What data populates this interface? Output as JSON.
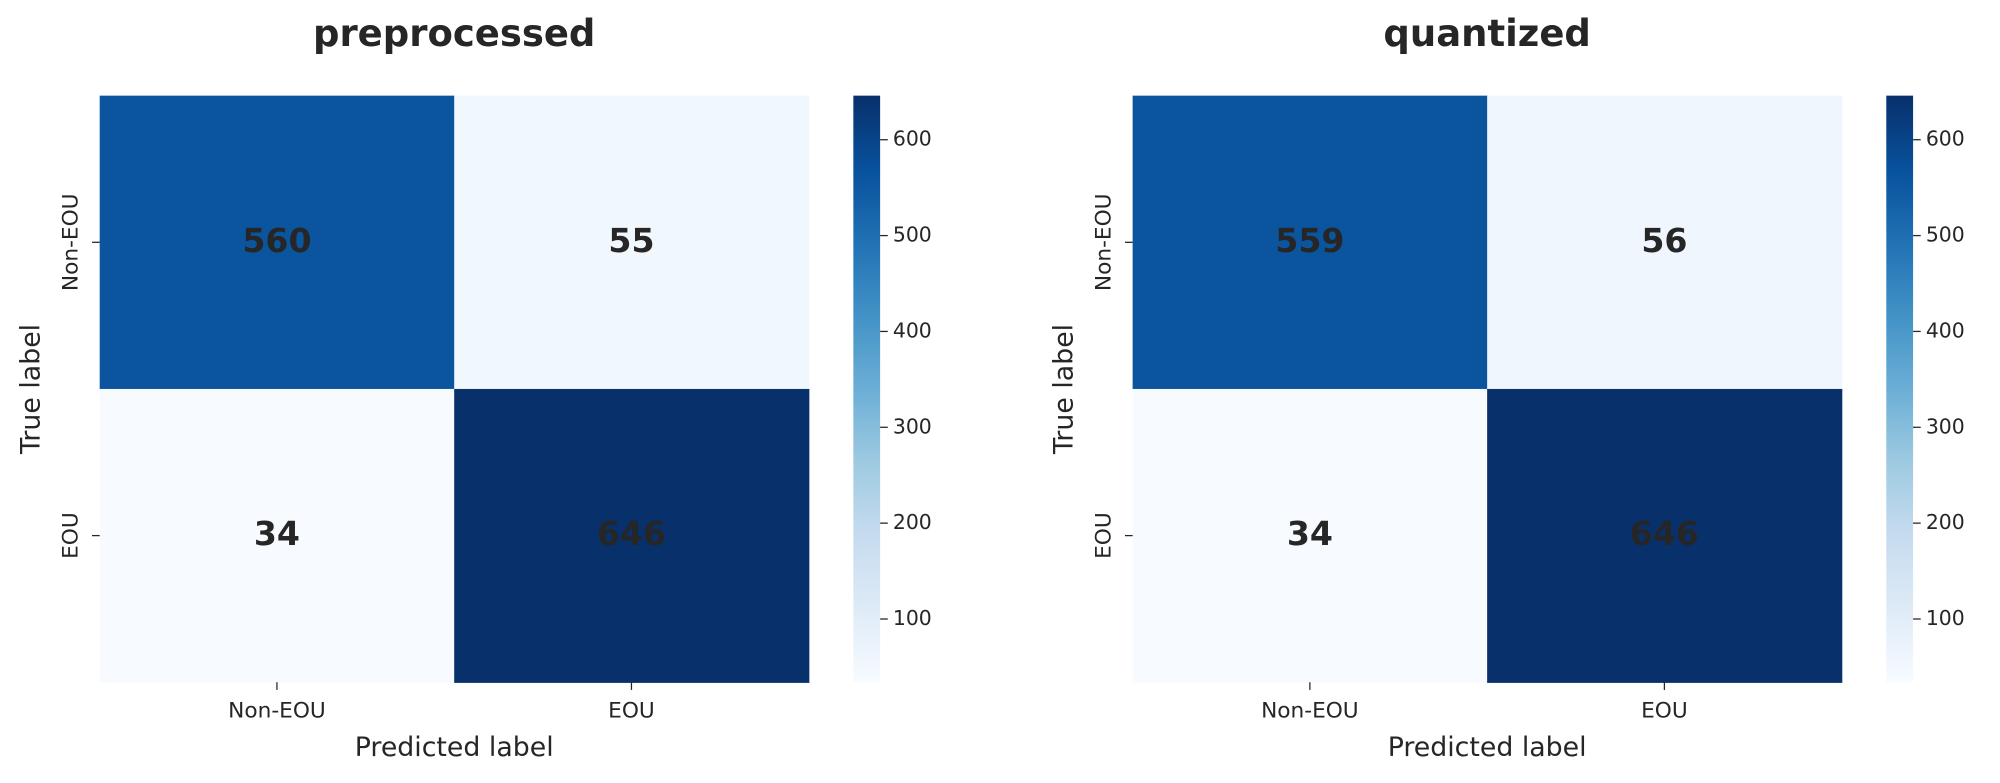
{
  "chart_data": [
    {
      "type": "heatmap",
      "title": "preprocessed",
      "x_label": "Predicted label",
      "y_label": "True label",
      "x_categories": [
        "Non-EOU",
        "EOU"
      ],
      "y_categories": [
        "Non-EOU",
        "EOU"
      ],
      "values": [
        [
          560,
          55
        ],
        [
          34,
          646
        ]
      ],
      "colormap": "Blues",
      "clim": [
        34,
        646
      ],
      "colorbar_ticks": [
        100,
        200,
        300,
        400,
        500,
        600
      ]
    },
    {
      "type": "heatmap",
      "title": "quantized",
      "x_label": "Predicted label",
      "y_label": "True label",
      "x_categories": [
        "Non-EOU",
        "EOU"
      ],
      "y_categories": [
        "Non-EOU",
        "EOU"
      ],
      "values": [
        [
          559,
          56
        ],
        [
          34,
          646
        ]
      ],
      "colormap": "Blues",
      "clim": [
        34,
        646
      ],
      "colorbar_ticks": [
        100,
        200,
        300,
        400,
        500,
        600
      ]
    }
  ]
}
